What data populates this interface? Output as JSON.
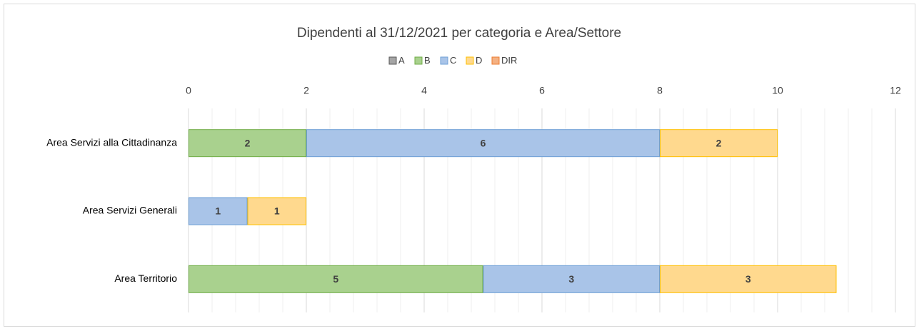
{
  "chart_data": {
    "type": "stacked_barh",
    "title": "Dipendenti al 31/12/2021 per categoria e Area/Settore",
    "categories": [
      "Area Servizi alla Cittadinanza",
      "Area Servizi Generali",
      "Area Territorio"
    ],
    "series": [
      {
        "name": "A",
        "color": "#a5a5a5",
        "edge": "#595959",
        "values": [
          null,
          null,
          null
        ]
      },
      {
        "name": "B",
        "color": "#a9d18e",
        "edge": "#70ad47",
        "values": [
          2,
          null,
          5
        ]
      },
      {
        "name": "C",
        "color": "#a9c4e8",
        "edge": "#6e9fd6",
        "values": [
          6,
          1,
          3
        ]
      },
      {
        "name": "D",
        "color": "#ffd98e",
        "edge": "#ffc000",
        "values": [
          2,
          1,
          3
        ]
      },
      {
        "name": "DIR",
        "color": "#f4b183",
        "edge": "#ed7d31",
        "values": [
          null,
          null,
          null
        ]
      }
    ],
    "xlim": [
      0,
      12
    ],
    "xticks": [
      0,
      2,
      4,
      6,
      8,
      10,
      12
    ],
    "grid": true,
    "minor_grid_divisions": 5,
    "legend": "top",
    "axis_position": "top"
  }
}
